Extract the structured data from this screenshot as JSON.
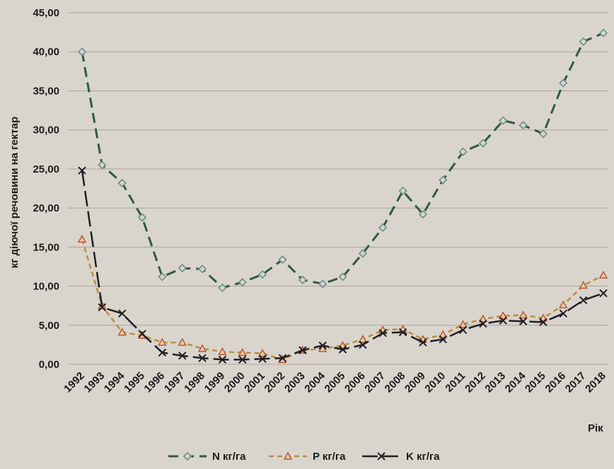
{
  "chart_data": {
    "type": "line",
    "ylabel": "кг діючої речовини на гектар",
    "xlabel": "Рік",
    "ylim": [
      0,
      45
    ],
    "yticks": [
      "0,00",
      "5,00",
      "10,00",
      "15,00",
      "20,00",
      "25,00",
      "30,00",
      "35,00",
      "40,00",
      "45,00"
    ],
    "categories": [
      "1992",
      "1993",
      "1994",
      "1995",
      "1996",
      "1997",
      "1998",
      "1999",
      "2000",
      "2001",
      "2002",
      "2003",
      "2004",
      "2005",
      "2006",
      "2007",
      "2008",
      "2009",
      "2010",
      "2011",
      "2012",
      "2013",
      "2014",
      "2015",
      "2016",
      "2017",
      "2018"
    ],
    "series": [
      {
        "name": "N кг/га",
        "color": "#2f5a3e",
        "marker": "diamond",
        "values": [
          40.0,
          25.5,
          23.2,
          18.8,
          11.2,
          12.3,
          12.2,
          9.8,
          10.5,
          11.5,
          13.4,
          10.8,
          10.3,
          11.2,
          14.2,
          17.5,
          22.2,
          19.2,
          23.6,
          27.2,
          28.3,
          31.2,
          30.6,
          29.5,
          36.0,
          41.3,
          42.4
        ]
      },
      {
        "name": "P кг/га",
        "color": "#c28a3c",
        "marker": "triangle",
        "values": [
          16.0,
          7.5,
          4.1,
          3.7,
          2.8,
          2.8,
          2.0,
          1.6,
          1.5,
          1.4,
          0.6,
          1.8,
          2.0,
          2.4,
          3.2,
          4.4,
          4.5,
          3.2,
          3.8,
          5.1,
          5.8,
          6.2,
          6.3,
          5.9,
          7.6,
          10.1,
          11.4
        ]
      },
      {
        "name": "K кг/га",
        "color": "#1f1f24",
        "marker": "x",
        "values": [
          24.8,
          7.3,
          6.5,
          3.9,
          1.5,
          1.1,
          0.8,
          0.6,
          0.6,
          0.7,
          0.8,
          1.8,
          2.4,
          1.9,
          2.5,
          4.0,
          4.1,
          2.8,
          3.2,
          4.4,
          5.2,
          5.6,
          5.5,
          5.4,
          6.5,
          8.2,
          9.1
        ]
      }
    ],
    "grid": true,
    "legend": "bottom"
  }
}
